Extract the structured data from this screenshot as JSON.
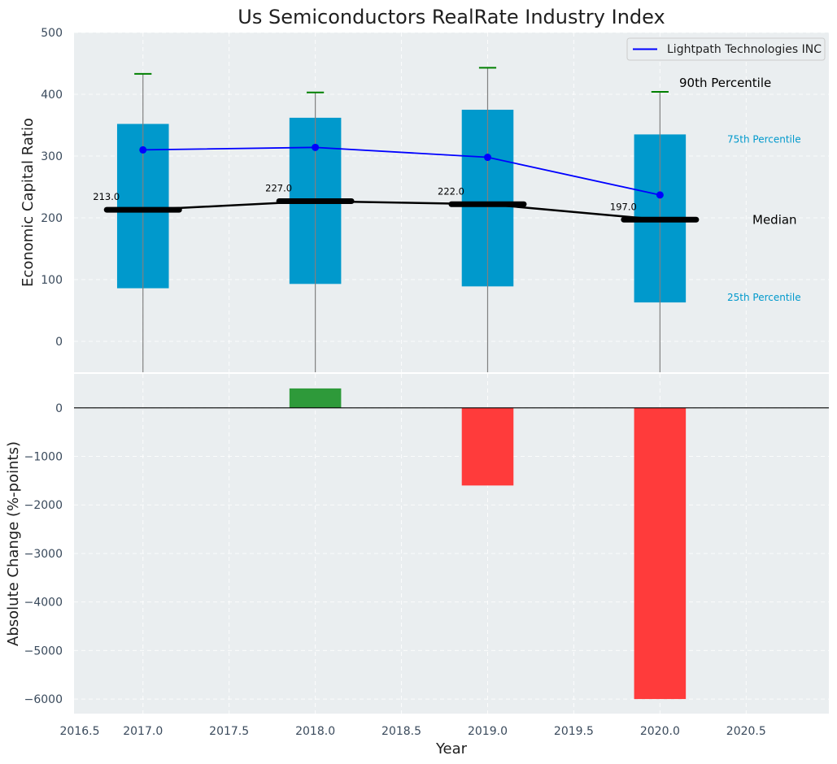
{
  "chart_data": {
    "title": "Us Semiconductors RealRate Industry Index",
    "xlabel": "Year",
    "xlim": [
      2016.6,
      2020.98
    ],
    "xticks": [
      2016.5,
      2017.0,
      2017.5,
      2018.0,
      2018.5,
      2019.0,
      2019.5,
      2020.0,
      2020.5
    ],
    "xtick_labels": [
      "2016.5",
      "2017.0",
      "2017.5",
      "2018.0",
      "2018.5",
      "2019.0",
      "2019.5",
      "2020.0",
      "2020.5"
    ],
    "grid": true,
    "top_panel": {
      "type": "bar",
      "ylabel": "Economic Capital Ratio",
      "ylim": [
        -50,
        500
      ],
      "yticks": [
        0,
        100,
        200,
        300,
        400,
        500
      ],
      "ytick_labels": [
        "0",
        "100",
        "200",
        "300",
        "400",
        "500"
      ],
      "years": [
        2017,
        2018,
        2019,
        2020
      ],
      "p25": [
        86,
        93,
        89,
        63
      ],
      "p75": [
        352,
        362,
        375,
        335
      ],
      "p90": [
        433,
        403,
        443,
        404
      ],
      "median": [
        213,
        227,
        222,
        197
      ],
      "median_labels": [
        "213.0",
        "227.0",
        "222.0",
        "197.0"
      ],
      "company": {
        "name": "Lightpath Technologies INC",
        "values": [
          310,
          314,
          298,
          237
        ]
      },
      "legend_placement": "top-right",
      "annotations": {
        "p90": "90th Percentile",
        "p75": "75th Percentile",
        "median": "Median",
        "p25": "25th Percentile"
      },
      "colors": {
        "box": "#0099cc",
        "company": "#0000ff",
        "median": "#000000",
        "whisker": "#808080",
        "cap": "#008000"
      }
    },
    "bottom_panel": {
      "type": "bar",
      "ylabel": "Absolute Change (%-points)",
      "ylim": [
        -6300,
        700
      ],
      "yticks": [
        -6000,
        -5000,
        -4000,
        -3000,
        -2000,
        -1000,
        0
      ],
      "ytick_labels": [
        "−6000",
        "−5000",
        "−4000",
        "−3000",
        "−2000",
        "−1000",
        "0"
      ],
      "years": [
        2018,
        2019,
        2020
      ],
      "values": [
        400,
        -1600,
        -6000
      ],
      "colors": {
        "positive": "#2e9a3a",
        "negative": "#ff3b3b"
      }
    }
  }
}
